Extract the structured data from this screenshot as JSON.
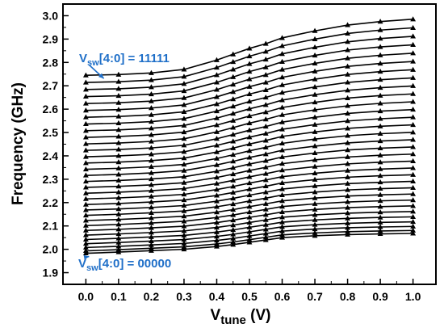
{
  "colors": {
    "annotation": "#1f6fc8",
    "curve": "#000000",
    "frame": "#000000"
  },
  "chart_data": {
    "type": "line",
    "title": "",
    "xlabel": {
      "main": "V",
      "sub": "tune",
      "unit": " (V)"
    },
    "ylabel": "Frequency (GHz)",
    "xlim": [
      -0.07,
      1.07
    ],
    "ylim": [
      1.85,
      3.05
    ],
    "x": [
      0.0,
      0.1,
      0.2,
      0.3,
      0.4,
      0.45,
      0.5,
      0.55,
      0.6,
      0.7,
      0.8,
      0.9,
      1.0
    ],
    "xticks": [
      "0.0",
      "0.1",
      "0.2",
      "0.3",
      "0.4",
      "0.5",
      "0.6",
      "0.7",
      "0.8",
      "0.9",
      "1.0"
    ],
    "yticks": [
      "1.9",
      "2.0",
      "2.1",
      "2.2",
      "2.3",
      "2.4",
      "2.5",
      "2.6",
      "2.7",
      "2.8",
      "2.9",
      "3.0"
    ],
    "marker": "triangle",
    "grid": false,
    "series_count": 32,
    "top_curve": [
      2.745,
      2.748,
      2.755,
      2.77,
      2.81,
      2.835,
      2.86,
      2.88,
      2.905,
      2.935,
      2.96,
      2.975,
      2.985
    ],
    "bottom_curve": [
      1.983,
      1.988,
      1.994,
      2.0,
      2.012,
      2.02,
      2.03,
      2.04,
      2.05,
      2.058,
      2.063,
      2.066,
      2.068
    ],
    "annotations": [
      {
        "main": "V",
        "sub": "sw",
        "rest": "[4:0] = 11111",
        "points_to": [
          0.05,
          2.745
        ]
      },
      {
        "main": "V",
        "sub": "sw",
        "rest": "[4:0] = 00000",
        "points_to": [
          0.0,
          1.983
        ]
      }
    ]
  }
}
